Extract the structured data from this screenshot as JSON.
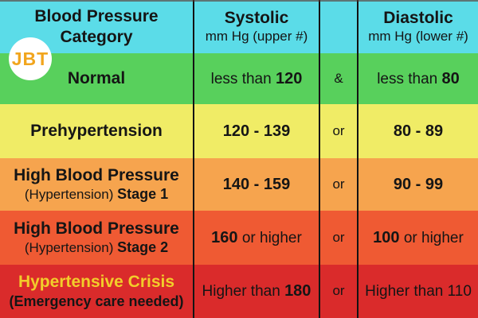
{
  "logo": {
    "text": "JBT",
    "text_color": "#f1a51d",
    "bg_color": "#ffffff"
  },
  "palette": {
    "header_bg": "#5bdce8",
    "grid_line": "#141414",
    "text": "#151515",
    "crisis_title": "#f2cd2b"
  },
  "header": {
    "category_line1": "Blood Pressure",
    "category_line2": "Category",
    "systolic_title": "Systolic",
    "systolic_subtitle": "mm Hg (upper #)",
    "connector": "",
    "diastolic_title": "Diastolic",
    "diastolic_subtitle": "mm Hg (lower #)"
  },
  "rows": [
    {
      "bg": "#58d05c",
      "label": {
        "line1": "Normal",
        "line1_color": "#151515",
        "line2_pre": "",
        "line2_bold": ""
      },
      "systolic": {
        "pre": "less than ",
        "bold": "120",
        "post": ""
      },
      "connector": "&",
      "diastolic": {
        "pre": "less than ",
        "bold": "80",
        "post": ""
      }
    },
    {
      "bg": "#f0ec66",
      "label": {
        "line1": "Prehypertension",
        "line1_color": "#151515",
        "line2_pre": "",
        "line2_bold": ""
      },
      "systolic": {
        "pre": "",
        "bold": "120 - 139",
        "post": ""
      },
      "connector": "or",
      "diastolic": {
        "pre": "",
        "bold": "80 - 89",
        "post": ""
      }
    },
    {
      "bg": "#f6a44e",
      "label": {
        "line1": "High Blood Pressure",
        "line1_color": "#151515",
        "line2_pre": "(Hypertension) ",
        "line2_bold": "Stage 1"
      },
      "systolic": {
        "pre": "",
        "bold": "140 - 159",
        "post": ""
      },
      "connector": "or",
      "diastolic": {
        "pre": "",
        "bold": "90 - 99",
        "post": ""
      }
    },
    {
      "bg": "#ef5a33",
      "label": {
        "line1": "High Blood Pressure",
        "line1_color": "#151515",
        "line2_pre": "(Hypertension) ",
        "line2_bold": "Stage 2"
      },
      "systolic": {
        "pre": "",
        "bold": "160",
        "post": " or higher"
      },
      "connector": "or",
      "diastolic": {
        "pre": "",
        "bold": "100",
        "post": " or higher"
      }
    },
    {
      "bg": "#da2b2b",
      "label": {
        "line1": "Hypertensive Crisis",
        "line1_color": "#f2cd2b",
        "line2_pre": "",
        "line2_bold": "(Emergency care needed)"
      },
      "systolic": {
        "pre": "Higher than ",
        "bold": "180",
        "post": ""
      },
      "connector": "or",
      "diastolic": {
        "pre": "Higher than 110",
        "bold": "",
        "post": ""
      }
    }
  ],
  "chart_data": {
    "type": "table",
    "title": "Blood Pressure Category",
    "columns": [
      "Blood Pressure Category",
      "Systolic mm Hg (upper #)",
      "",
      "Diastolic mm Hg (lower #)"
    ],
    "rows": [
      [
        "Normal",
        "less than 120",
        "&",
        "less than 80"
      ],
      [
        "Prehypertension",
        "120 - 139",
        "or",
        "80 - 89"
      ],
      [
        "High Blood Pressure (Hypertension) Stage 1",
        "140 - 159",
        "or",
        "90 - 99"
      ],
      [
        "High Blood Pressure (Hypertension) Stage 2",
        "160 or higher",
        "or",
        "100 or higher"
      ],
      [
        "Hypertensive Crisis (Emergency care needed)",
        "Higher than 180",
        "or",
        "Higher than 110"
      ]
    ],
    "row_colors": [
      "#58d05c",
      "#f0ec66",
      "#f6a44e",
      "#ef5a33",
      "#da2b2b"
    ],
    "header_color": "#5bdce8"
  }
}
